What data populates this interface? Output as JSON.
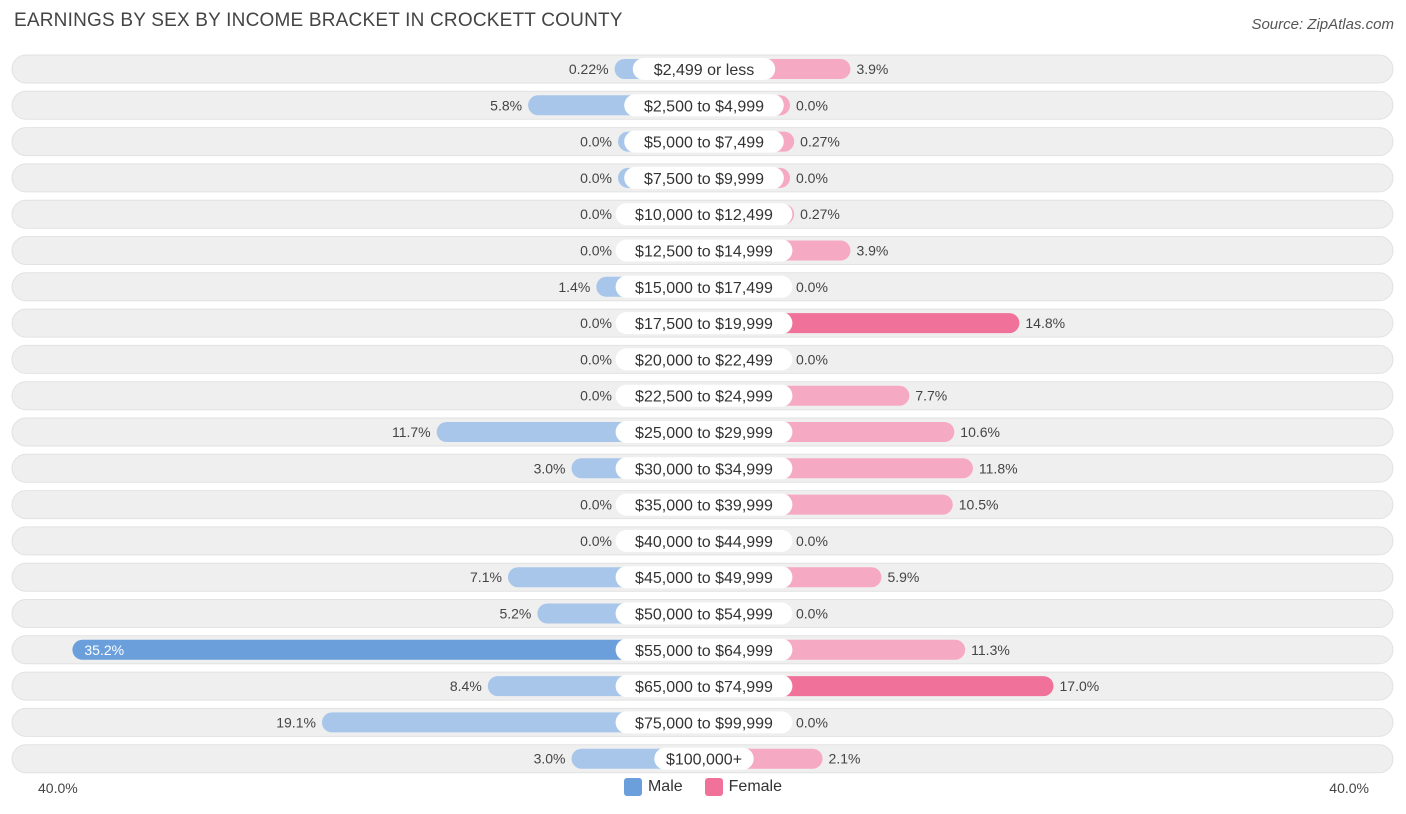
{
  "header": {
    "title": "EARNINGS BY SEX BY INCOME BRACKET IN CROCKETT COUNTY",
    "source": "Source: ZipAtlas.com"
  },
  "axis": {
    "left_label": "40.0%",
    "right_label": "40.0%"
  },
  "legend": {
    "male_label": "Male",
    "female_label": "Female"
  },
  "colors": {
    "male_light": "#a8c6ea",
    "male_dark": "#6a9fdc",
    "female_light": "#f5a9c2",
    "female_dark": "#f0729a",
    "row_bg": "#efefef"
  },
  "chart_data": {
    "type": "bar",
    "orientation": "horizontal-diverging",
    "title": "EARNINGS BY SEX BY INCOME BRACKET IN CROCKETT COUNTY",
    "xlim": [
      -40,
      40
    ],
    "categories": [
      "$2,499 or less",
      "$2,500 to $4,999",
      "$5,000 to $7,499",
      "$7,500 to $9,999",
      "$10,000 to $12,499",
      "$12,500 to $14,999",
      "$15,000 to $17,499",
      "$17,500 to $19,999",
      "$20,000 to $22,499",
      "$22,500 to $24,999",
      "$25,000 to $29,999",
      "$30,000 to $34,999",
      "$35,000 to $39,999",
      "$40,000 to $44,999",
      "$45,000 to $49,999",
      "$50,000 to $54,999",
      "$55,000 to $64,999",
      "$65,000 to $74,999",
      "$75,000 to $99,999",
      "$100,000+"
    ],
    "series": [
      {
        "name": "Male",
        "values": [
          0.22,
          5.8,
          0.0,
          0.0,
          0.0,
          0.0,
          1.4,
          0.0,
          0.0,
          0.0,
          11.7,
          3.0,
          0.0,
          0.0,
          7.1,
          5.2,
          35.2,
          8.4,
          19.1,
          3.0
        ],
        "labels": [
          "0.22%",
          "5.8%",
          "0.0%",
          "0.0%",
          "0.0%",
          "0.0%",
          "1.4%",
          "0.0%",
          "0.0%",
          "0.0%",
          "11.7%",
          "3.0%",
          "0.0%",
          "0.0%",
          "7.1%",
          "5.2%",
          "35.2%",
          "8.4%",
          "19.1%",
          "3.0%"
        ]
      },
      {
        "name": "Female",
        "values": [
          3.9,
          0.0,
          0.27,
          0.0,
          0.27,
          3.9,
          0.0,
          14.8,
          0.0,
          7.7,
          10.6,
          11.8,
          10.5,
          0.0,
          5.9,
          0.0,
          11.3,
          17.0,
          0.0,
          2.1
        ],
        "labels": [
          "3.9%",
          "0.0%",
          "0.27%",
          "0.0%",
          "0.27%",
          "3.9%",
          "0.0%",
          "14.8%",
          "0.0%",
          "7.7%",
          "10.6%",
          "11.8%",
          "10.5%",
          "0.0%",
          "5.9%",
          "0.0%",
          "11.3%",
          "17.0%",
          "0.0%",
          "2.1%"
        ]
      }
    ]
  }
}
